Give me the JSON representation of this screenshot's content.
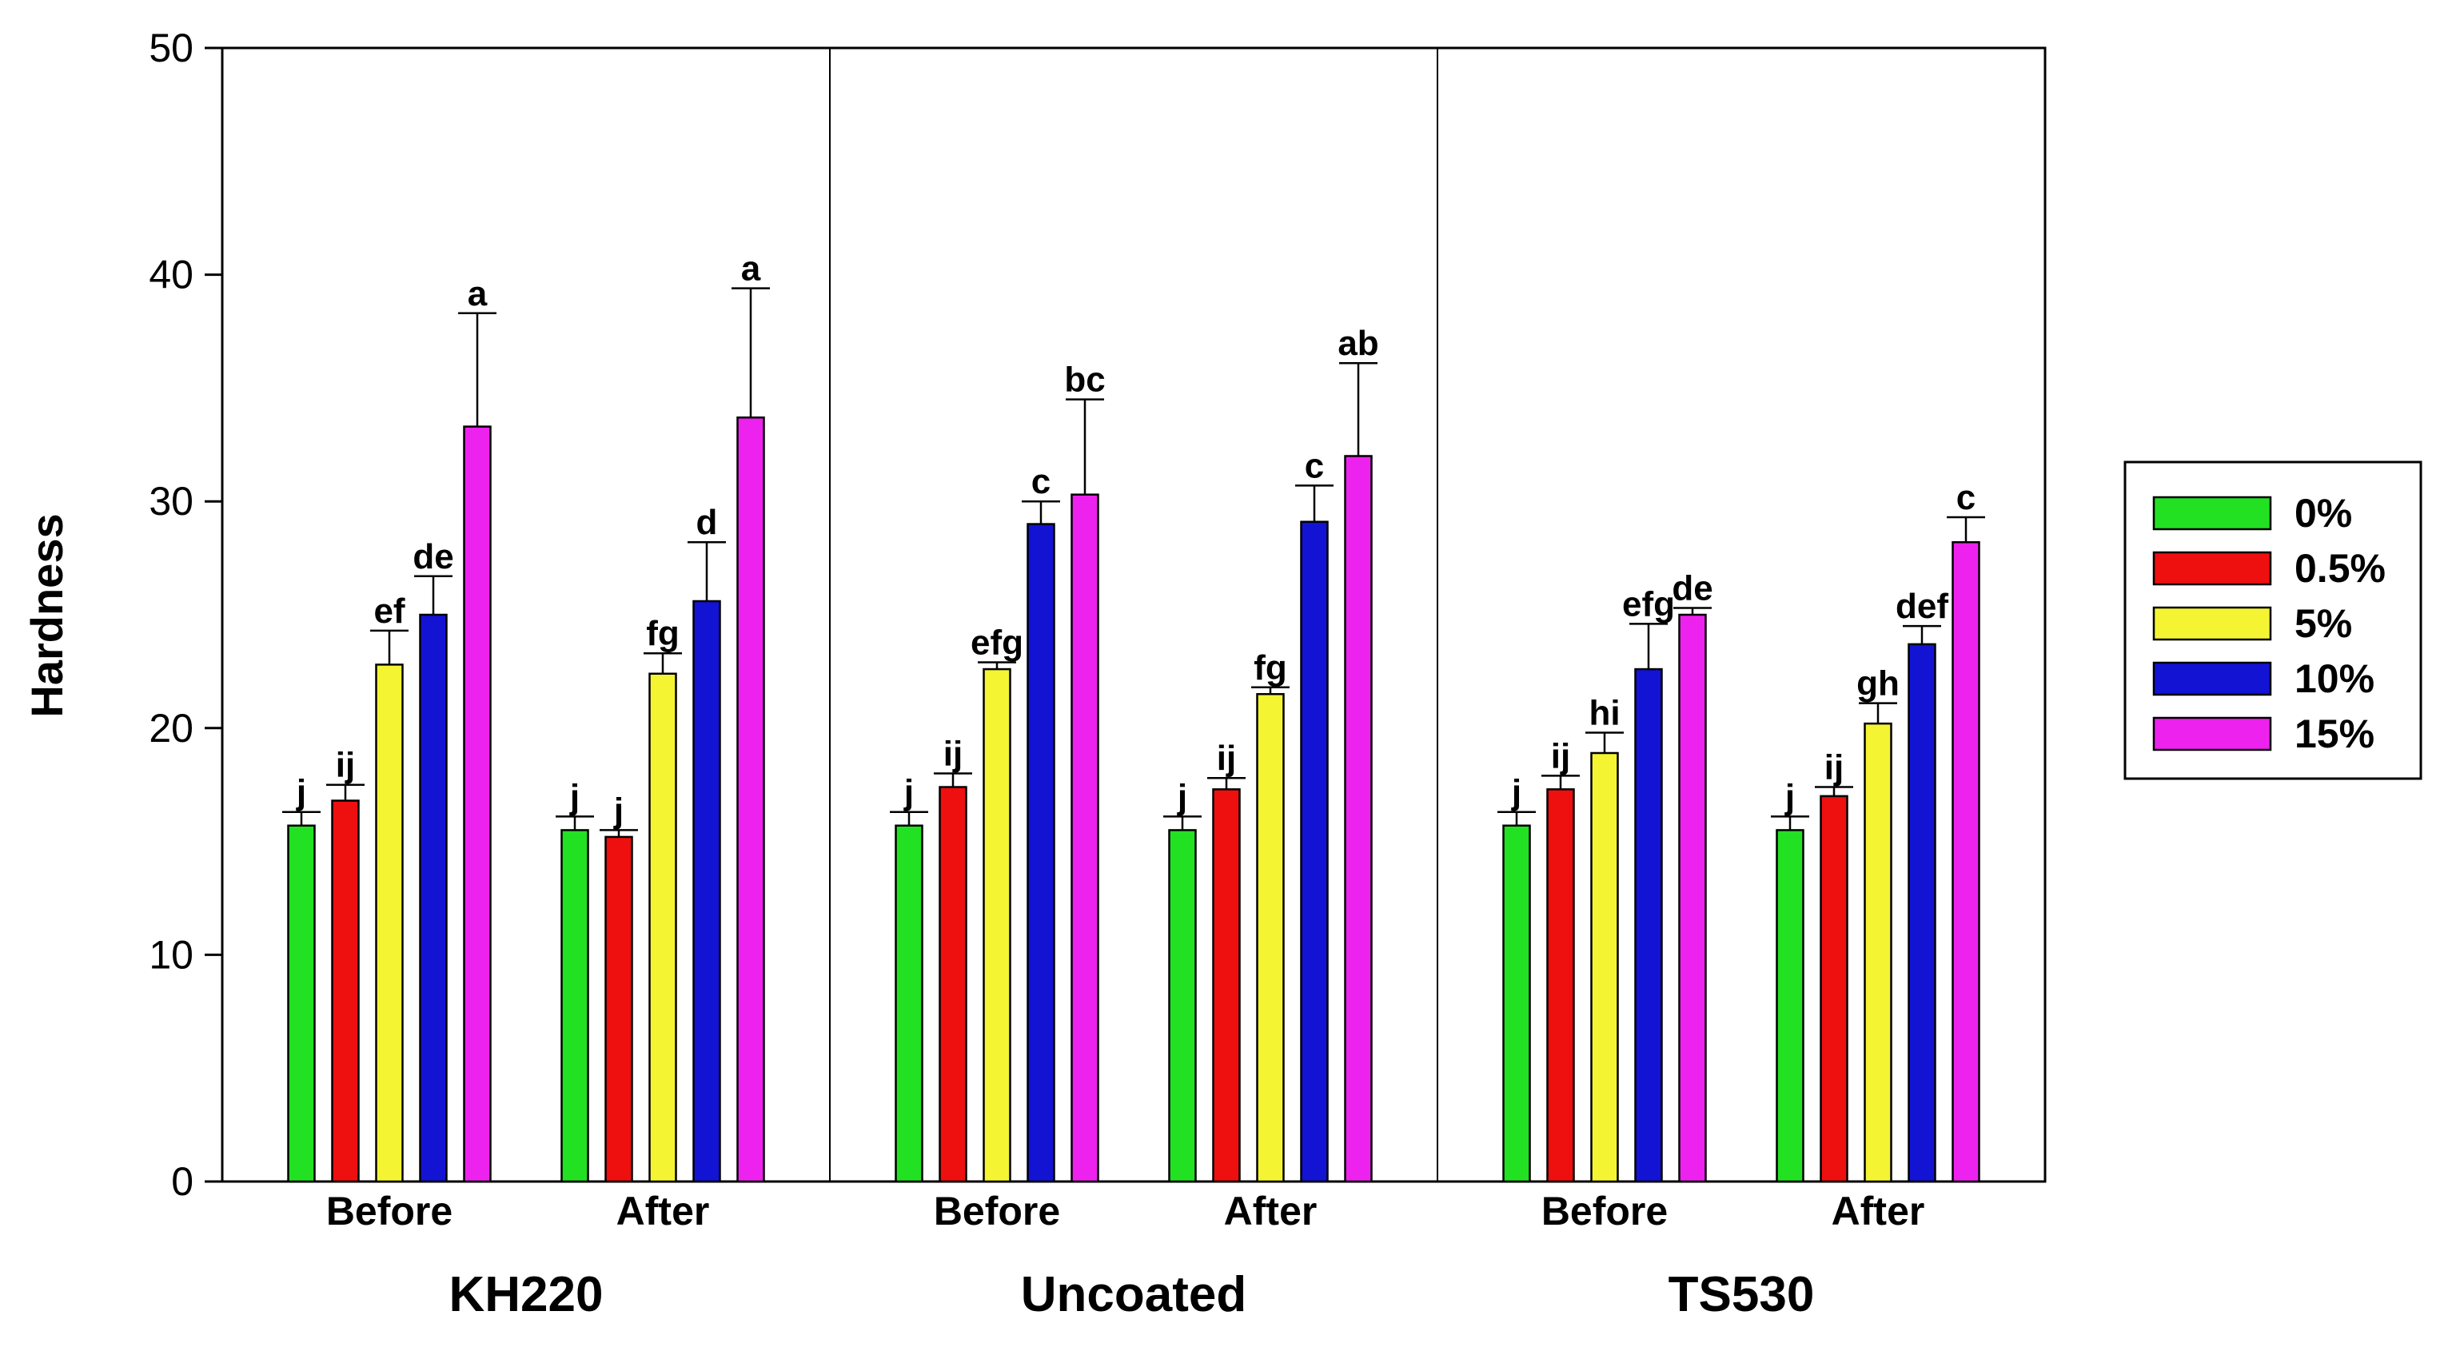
{
  "chart_data": {
    "type": "bar",
    "title": "",
    "xlabel": "",
    "ylabel": "Hardness",
    "ylim": [
      0,
      50
    ],
    "yticks": [
      0,
      10,
      20,
      30,
      40,
      50
    ],
    "grid": false,
    "legend_position": "right",
    "groups": [
      {
        "name": "KH220",
        "subgroups": [
          {
            "name": "Before",
            "values": [
              15.7,
              16.8,
              22.8,
              25.0,
              33.3
            ],
            "errors": [
              0.6,
              0.7,
              1.5,
              1.7,
              5.0
            ],
            "letters": [
              "j",
              "ij",
              "ef",
              "de",
              "a"
            ]
          },
          {
            "name": "After",
            "values": [
              15.5,
              15.2,
              22.4,
              25.6,
              33.7
            ],
            "errors": [
              0.6,
              0.3,
              0.9,
              2.6,
              5.7
            ],
            "letters": [
              "j",
              "j",
              "fg",
              "d",
              "a"
            ]
          }
        ]
      },
      {
        "name": "Uncoated",
        "subgroups": [
          {
            "name": "Before",
            "values": [
              15.7,
              17.4,
              22.6,
              29.0,
              30.3
            ],
            "errors": [
              0.6,
              0.6,
              0.3,
              1.0,
              4.2
            ],
            "letters": [
              "j",
              "ij",
              "efg",
              "c",
              "bc"
            ]
          },
          {
            "name": "After",
            "values": [
              15.5,
              17.3,
              21.5,
              29.1,
              32.0
            ],
            "errors": [
              0.6,
              0.5,
              0.3,
              1.6,
              4.1
            ],
            "letters": [
              "j",
              "ij",
              "fg",
              "c",
              "ab"
            ]
          }
        ]
      },
      {
        "name": "TS530",
        "subgroups": [
          {
            "name": "Before",
            "values": [
              15.7,
              17.3,
              18.9,
              22.6,
              25.0
            ],
            "errors": [
              0.6,
              0.6,
              0.9,
              2.0,
              0.3
            ],
            "letters": [
              "j",
              "ij",
              "hi",
              "efg",
              "de"
            ]
          },
          {
            "name": "After",
            "values": [
              15.5,
              17.0,
              20.2,
              23.7,
              28.2
            ],
            "errors": [
              0.6,
              0.4,
              0.9,
              0.8,
              1.1
            ],
            "letters": [
              "j",
              "ij",
              "gh",
              "def",
              "c"
            ]
          }
        ]
      }
    ],
    "series": [
      {
        "name": "0%",
        "color": "#22e122"
      },
      {
        "name": "0.5%",
        "color": "#ee0f0f"
      },
      {
        "name": "5%",
        "color": "#f4f433"
      },
      {
        "name": "10%",
        "color": "#1313d4"
      },
      {
        "name": "15%",
        "color": "#ee22ee"
      }
    ]
  }
}
